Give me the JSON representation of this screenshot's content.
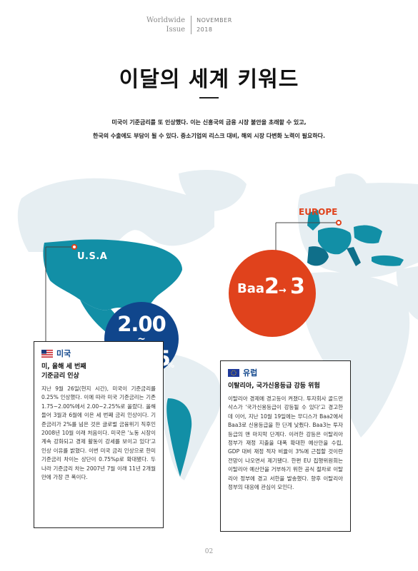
{
  "masthead": {
    "series_line1": "Worldwide",
    "series_line2": "Issue",
    "month": "NOVEMBER",
    "year": "2018"
  },
  "page": {
    "title": "이달의 세계 키워드",
    "intro_line1": "미국이 기준금리를 또 인상했다. 이는 신흥국의 금융 시장 불안을 초래할 수 있고,",
    "intro_line2": "한국의 수출에도 부담이 될 수 있다. 중소기업의 리스크 대비, 해외 시장 다변화 노력이 필요하다.",
    "page_number": "02"
  },
  "map": {
    "usa_label": "U.S.A",
    "europe_label": "EUROPE",
    "land_color": "#e6eef2",
    "highlight_color": "#128fa6",
    "deep_color": "#0f6f8a"
  },
  "usa": {
    "rate_from": "2.00",
    "rate_tilde": "~",
    "rate_to": "2.25",
    "rate_unit": "%",
    "circle_color": "#10468c",
    "country": "미국",
    "headline_line1": "미, 올해 세 번째",
    "headline_line2": "기준금리 인상",
    "body": "지난 9월 26일(현지 시간), 미국이 기준금리를 0.25% 인상했다. 이에 따라 미국 기준금리는 기존 1.75~2.00%에서 2.00~2.25%로 올랐다. 올해 들어 3월과 6월에 이은 세 번째 금리 인상이다. 기준금리가 2%를 넘은 것은 글로벌 금융위기 직후인 2008년 10월 이래 처음이다. 미국은 '노동 시장이 계속 강화되고 경제 활동이 강세를 보이고 있다'고 인상 이유를 밝혔다. 이번 미국 금리 인상으로 한미 기준금리 차이는 상단이 0.75%p로 확대됐다. 두 나라 기준금리 차는 2007년 7월 이래 11년 2개월 만에 가장 큰 폭이다."
  },
  "europe": {
    "grade_text": "Baa",
    "grade_from": "2",
    "grade_arrow": "→",
    "grade_to": "3",
    "circle_color": "#e0421c",
    "country": "유럽",
    "headline": "이탈리아, 국가신용등급 강등 위험",
    "body": "이탈리아 경제에 경고등이 켜졌다. 투자회사 골드먼삭스가 '국가신용등급이 강등될 수 있다'고 경고한 데 이어, 지난 10월 19일에는 무디스가 Baa2에서 Baa3로 신용등급을 한 단계 낮췄다. Baa3는 투자등급의 맨 마지막 단계다. 이러한 강등은 이탈리아 정부가 재정 지출을 대폭 확대한 예산안을 수립, GDP 대비 재정 적자 비율이 3%에 근접할 것이란 전망이 나오면서 제기됐다. 한편 EU 집행위원회는 이탈리아 예산안을 거부하기 위한 공식 절차로 이탈리아 정부에 경고 서한을 발송했다. 향후 이탈리아 정부의 대응에 관심이 모인다."
  }
}
